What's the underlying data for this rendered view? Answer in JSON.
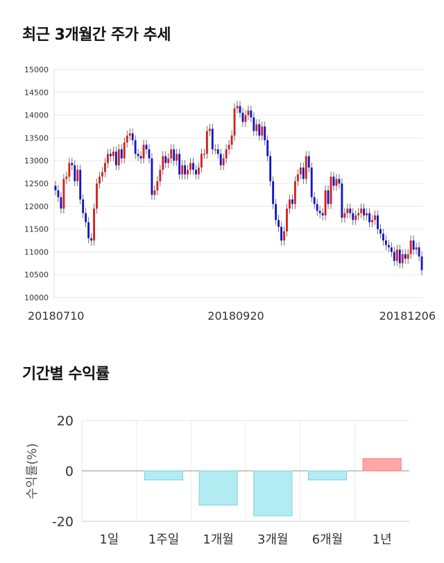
{
  "section1": {
    "title": "최근 3개월간 주가 추세"
  },
  "section2": {
    "title": "기간별 수익률"
  },
  "chart_data": [
    {
      "type": "candlestick",
      "title": "최근 3개월간 주가 추세",
      "ylim": [
        10000,
        15000
      ],
      "yticks": [
        10000,
        10500,
        11000,
        11500,
        12000,
        12500,
        13000,
        13500,
        14000,
        14500,
        15000
      ],
      "xtick_labels": [
        "20180710",
        "20180920",
        "20181206"
      ],
      "grid": true,
      "colors": {
        "up": "#d41f1f",
        "down": "#1414c8",
        "wick": "#333333"
      },
      "closes": [
        12350,
        12200,
        11950,
        12600,
        12650,
        12950,
        12900,
        12550,
        12800,
        12150,
        11850,
        11650,
        11300,
        11250,
        11950,
        12500,
        12650,
        12750,
        12950,
        13150,
        13100,
        13200,
        12900,
        13250,
        13050,
        13400,
        13550,
        13600,
        13450,
        13150,
        13100,
        13050,
        13350,
        13250,
        13050,
        12250,
        12350,
        12550,
        12800,
        13100,
        12950,
        13050,
        13250,
        13000,
        13150,
        12700,
        12900,
        12700,
        12800,
        12950,
        12800,
        12700,
        12850,
        13150,
        13150,
        13650,
        13700,
        13250,
        13250,
        13150,
        12900,
        13050,
        13250,
        13350,
        13550,
        14150,
        14200,
        14050,
        13850,
        14000,
        14100,
        13950,
        13650,
        13800,
        13550,
        13750,
        13450,
        13100,
        12550,
        12050,
        11700,
        11550,
        11250,
        11450,
        11950,
        12150,
        12050,
        12550,
        12700,
        12850,
        12600,
        13100,
        12850,
        12200,
        12050,
        11900,
        11850,
        11800,
        12350,
        12050,
        12650,
        12450,
        12600,
        12500,
        11750,
        11850,
        11950,
        11850,
        11700,
        11800,
        11850,
        11950,
        11800,
        11850,
        11650,
        11700,
        11800,
        11500,
        11400,
        11250,
        11150,
        11100,
        11000,
        10800,
        11050,
        10750,
        10950,
        10850,
        10950,
        11250,
        11050,
        11100,
        10900,
        10600
      ],
      "period_returns": {
        "type": "bar",
        "title": "기간별 수익률",
        "ylabel": "수익률(%)",
        "categories": [
          "1일",
          "1주일",
          "1개월",
          "3개월",
          "6개월",
          "1년"
        ],
        "values": [
          0,
          -3.6,
          -13.6,
          -17.8,
          -3.6,
          4.9
        ],
        "ylim": [
          -20,
          20
        ],
        "yticks": [
          -20,
          0,
          20
        ],
        "colors": {
          "negative": "#b3ebf2",
          "negative_edge": "#7fd0dc",
          "positive": "#ffa6a6",
          "positive_edge": "#ff8080"
        }
      }
    }
  ]
}
